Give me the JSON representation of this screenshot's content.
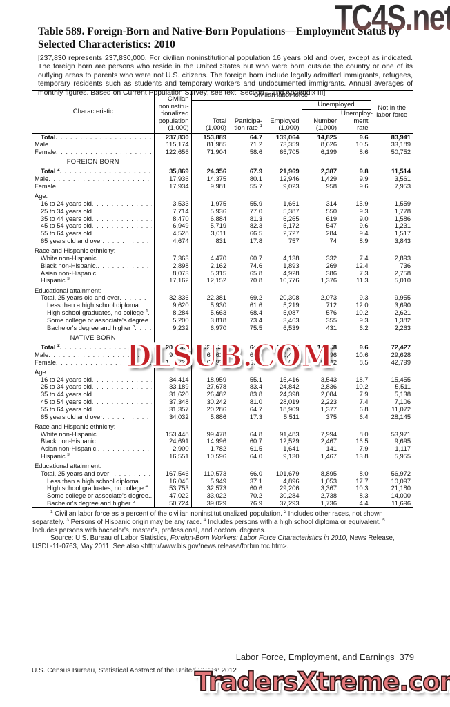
{
  "watermarks": {
    "top": "TC4S.net",
    "middle": "DLSUB.COM",
    "bottom": "TradersXtreme.com"
  },
  "header": {
    "title": "Table 589. Foreign-Born and Native-Born Populations—Employment Status by Selected Characteristics: 2010",
    "bracket_note": "[237,830 represents 237,830,000. For civilian noninstitutional population 16 years old and over, except as indicated. The foreign born are persons who reside in the United States but who were born outside the country or one of its outlying areas to parents who were not U.S. citizens. The foreign born include legally admitted immigrants, refugees, temporary residents such as students and temporary workers and undocumented immigrants. Annual averages of monthly figures. Based on Current Population Survey; see text, Section 1 and Appendix III]"
  },
  "table": {
    "characteristic_label": "Characteristic",
    "population_header": "Civilian\nnoninstitu-\ntionalized\npopulation\n(1,000)",
    "clf_group": "Civilian labor force",
    "unemployed_group": "Unemployed",
    "nilf_header": "Not in the\nlabor force",
    "columns": [
      {
        "lines": [
          "Total",
          "(1,000)"
        ],
        "sup": ""
      },
      {
        "lines": [
          "Participa-",
          "tion rate"
        ],
        "sup": "1"
      },
      {
        "lines": [
          "Employed",
          "(1,000)"
        ],
        "sup": ""
      },
      {
        "lines": [
          "Number",
          "(1,000)"
        ],
        "sup": ""
      },
      {
        "lines": [
          "Unemploy-",
          "ment rate"
        ],
        "sup": ""
      }
    ],
    "rows": [
      {
        "type": "data",
        "label": "Total",
        "sup": "",
        "indent": 1,
        "bold": true,
        "gap": false,
        "values": [
          "237,830",
          "153,889",
          "64.7",
          "139,064",
          "14,825",
          "9.6",
          "83,941"
        ]
      },
      {
        "type": "data",
        "label": "Male",
        "sup": "",
        "indent": 0,
        "bold": false,
        "gap": false,
        "values": [
          "115,174",
          "81,985",
          "71.2",
          "73,359",
          "8,626",
          "10.5",
          "33,189"
        ]
      },
      {
        "type": "data",
        "label": "Female",
        "sup": "",
        "indent": 0,
        "bold": false,
        "gap": false,
        "values": [
          "122,656",
          "71,904",
          "58.6",
          "65,705",
          "6,199",
          "8.6",
          "50,752"
        ]
      },
      {
        "type": "section",
        "label": "FOREIGN BORN",
        "sup": "",
        "indent": 0,
        "bold": false,
        "gap": true,
        "values": null
      },
      {
        "type": "data",
        "label": "Total",
        "sup": "2",
        "indent": 1,
        "bold": true,
        "gap": true,
        "values": [
          "35,869",
          "24,356",
          "67.9",
          "21,969",
          "2,387",
          "9.8",
          "11,514"
        ]
      },
      {
        "type": "data",
        "label": "Male",
        "sup": "",
        "indent": 0,
        "bold": false,
        "gap": false,
        "values": [
          "17,936",
          "14,375",
          "80.1",
          "12,946",
          "1,429",
          "9.9",
          "3,561"
        ]
      },
      {
        "type": "data",
        "label": "Female",
        "sup": "",
        "indent": 0,
        "bold": false,
        "gap": false,
        "values": [
          "17,934",
          "9,981",
          "55.7",
          "9,023",
          "958",
          "9.6",
          "7,953"
        ]
      },
      {
        "type": "group",
        "label": "Age:",
        "sup": "",
        "indent": 0,
        "bold": false,
        "gap": true,
        "values": null
      },
      {
        "type": "data",
        "label": "16 to 24 years old",
        "sup": "",
        "indent": 1,
        "bold": false,
        "gap": false,
        "values": [
          "3,533",
          "1,975",
          "55.9",
          "1,661",
          "314",
          "15.9",
          "1,559"
        ]
      },
      {
        "type": "data",
        "label": "25 to 34 years old",
        "sup": "",
        "indent": 1,
        "bold": false,
        "gap": false,
        "values": [
          "7,714",
          "5,936",
          "77.0",
          "5,387",
          "550",
          "9.3",
          "1,778"
        ]
      },
      {
        "type": "data",
        "label": "35 to 44 years old",
        "sup": "",
        "indent": 1,
        "bold": false,
        "gap": false,
        "values": [
          "8,470",
          "6,884",
          "81.3",
          "6,265",
          "619",
          "9.0",
          "1,586"
        ]
      },
      {
        "type": "data",
        "label": "45 to 54 years old",
        "sup": "",
        "indent": 1,
        "bold": false,
        "gap": false,
        "values": [
          "6,949",
          "5,719",
          "82.3",
          "5,172",
          "547",
          "9.6",
          "1,231"
        ]
      },
      {
        "type": "data",
        "label": "55 to 64 years old",
        "sup": "",
        "indent": 1,
        "bold": false,
        "gap": false,
        "values": [
          "4,528",
          "3,011",
          "66.5",
          "2,727",
          "284",
          "9.4",
          "1,517"
        ]
      },
      {
        "type": "data",
        "label": "65 years old and over",
        "sup": "",
        "indent": 1,
        "bold": false,
        "gap": false,
        "values": [
          "4,674",
          "831",
          "17.8",
          "757",
          "74",
          "8.9",
          "3,843"
        ]
      },
      {
        "type": "group",
        "label": "Race and Hispanic ethnicity:",
        "sup": "",
        "indent": 0,
        "bold": false,
        "gap": true,
        "values": null
      },
      {
        "type": "data",
        "label": "White non-Hispanic.",
        "sup": "",
        "indent": 1,
        "bold": false,
        "gap": false,
        "values": [
          "7,363",
          "4,470",
          "60.7",
          "4,138",
          "332",
          "7.4",
          "2,893"
        ]
      },
      {
        "type": "data",
        "label": "Black non-Hispanic.",
        "sup": "",
        "indent": 1,
        "bold": false,
        "gap": false,
        "values": [
          "2,898",
          "2,162",
          "74.6",
          "1,893",
          "269",
          "12.4",
          "736"
        ]
      },
      {
        "type": "data",
        "label": "Asian non-Hispanic.",
        "sup": "",
        "indent": 1,
        "bold": false,
        "gap": false,
        "values": [
          "8,073",
          "5,315",
          "65.8",
          "4,928",
          "386",
          "7.3",
          "2,758"
        ]
      },
      {
        "type": "data",
        "label": "Hispanic",
        "sup": "3",
        "indent": 1,
        "bold": false,
        "gap": false,
        "values": [
          "17,162",
          "12,152",
          "70.8",
          "10,776",
          "1,376",
          "11.3",
          "5,010"
        ]
      },
      {
        "type": "group",
        "label": "Educational attainment:",
        "sup": "",
        "indent": 0,
        "bold": false,
        "gap": true,
        "values": null
      },
      {
        "type": "data",
        "label": "Total, 25 years old and over",
        "sup": "",
        "indent": 1,
        "bold": false,
        "gap": false,
        "values": [
          "32,336",
          "22,381",
          "69.2",
          "20,308",
          "2,073",
          "9.3",
          "9,955"
        ]
      },
      {
        "type": "data",
        "label": "Less than a high school diploma",
        "sup": "",
        "indent": 2,
        "bold": false,
        "gap": false,
        "values": [
          "9,620",
          "5,930",
          "61.6",
          "5,219",
          "712",
          "12.0",
          "3,690"
        ]
      },
      {
        "type": "data",
        "label": "High school graduates, no college",
        "sup": "4",
        "indent": 2,
        "bold": false,
        "gap": false,
        "values": [
          "8,284",
          "5,663",
          "68.4",
          "5,087",
          "576",
          "10.2",
          "2,621"
        ]
      },
      {
        "type": "data",
        "label": "Some college or associate's degree.",
        "sup": "",
        "indent": 2,
        "bold": false,
        "gap": false,
        "values": [
          "5,200",
          "3,818",
          "73.4",
          "3,463",
          "355",
          "9.3",
          "1,382"
        ]
      },
      {
        "type": "data",
        "label": "Bachelor's degree and higher",
        "sup": "5",
        "indent": 2,
        "bold": false,
        "gap": false,
        "values": [
          "9,232",
          "6,970",
          "75.5",
          "6,539",
          "431",
          "6.2",
          "2,263"
        ]
      },
      {
        "type": "section",
        "label": "NATIVE BORN",
        "sup": "",
        "indent": 0,
        "bold": false,
        "gap": true,
        "values": null
      },
      {
        "type": "data",
        "label": "Total",
        "sup": "2",
        "indent": 1,
        "bold": true,
        "gap": true,
        "values": [
          "201,960",
          "129,533",
          "64.1",
          "117,095",
          "12,438",
          "9.6",
          "72,427"
        ]
      },
      {
        "type": "data",
        "label": "Male",
        "sup": "",
        "indent": 0,
        "bold": false,
        "gap": false,
        "values": [
          "97,238",
          "67,610",
          "69.5",
          "60,414",
          "7,196",
          "10.6",
          "29,628"
        ]
      },
      {
        "type": "data",
        "label": "Female",
        "sup": "",
        "indent": 0,
        "bold": false,
        "gap": false,
        "values": [
          "104,722",
          "61,923",
          "59.1",
          "56,681",
          "5,242",
          "8.5",
          "42,799"
        ]
      },
      {
        "type": "group",
        "label": "Age:",
        "sup": "",
        "indent": 0,
        "bold": false,
        "gap": true,
        "values": null
      },
      {
        "type": "data",
        "label": "16 to 24 years old",
        "sup": "",
        "indent": 1,
        "bold": false,
        "gap": false,
        "values": [
          "34,414",
          "18,959",
          "55.1",
          "15,416",
          "3,543",
          "18.7",
          "15,455"
        ]
      },
      {
        "type": "data",
        "label": "25 to 34 years old",
        "sup": "",
        "indent": 1,
        "bold": false,
        "gap": false,
        "values": [
          "33,189",
          "27,678",
          "83.4",
          "24,842",
          "2,836",
          "10.2",
          "5,511"
        ]
      },
      {
        "type": "data",
        "label": "35 to 44 years old",
        "sup": "",
        "indent": 1,
        "bold": false,
        "gap": false,
        "values": [
          "31,620",
          "26,482",
          "83.8",
          "24,398",
          "2,084",
          "7.9",
          "5,138"
        ]
      },
      {
        "type": "data",
        "label": "45 to 54 years old",
        "sup": "",
        "indent": 1,
        "bold": false,
        "gap": false,
        "values": [
          "37,348",
          "30,242",
          "81.0",
          "28,019",
          "2,223",
          "7.4",
          "7,106"
        ]
      },
      {
        "type": "data",
        "label": "55 to 64 years old",
        "sup": "",
        "indent": 1,
        "bold": false,
        "gap": false,
        "values": [
          "31,357",
          "20,286",
          "64.7",
          "18,909",
          "1,377",
          "6.8",
          "11,072"
        ]
      },
      {
        "type": "data",
        "label": "65 years old and over",
        "sup": "",
        "indent": 1,
        "bold": false,
        "gap": false,
        "values": [
          "34,032",
          "5,886",
          "17.3",
          "5,511",
          "375",
          "6.4",
          "28,145"
        ]
      },
      {
        "type": "group",
        "label": "Race and Hispanic ethnicity:",
        "sup": "",
        "indent": 0,
        "bold": false,
        "gap": true,
        "values": null
      },
      {
        "type": "data",
        "label": "White non-Hispanic.",
        "sup": "",
        "indent": 1,
        "bold": false,
        "gap": false,
        "values": [
          "153,448",
          "99,478",
          "64.8",
          "91,483",
          "7,994",
          "8.0",
          "53,971"
        ]
      },
      {
        "type": "data",
        "label": "Black non-Hispanic.",
        "sup": "",
        "indent": 1,
        "bold": false,
        "gap": false,
        "values": [
          "24,691",
          "14,996",
          "60.7",
          "12,529",
          "2,467",
          "16.5",
          "9,695"
        ]
      },
      {
        "type": "data",
        "label": "Asian non-Hispanic.",
        "sup": "",
        "indent": 1,
        "bold": false,
        "gap": false,
        "values": [
          "2,900",
          "1,782",
          "61.5",
          "1,641",
          "141",
          "7.9",
          "1,117"
        ]
      },
      {
        "type": "data",
        "label": "Hispanic",
        "sup": "3",
        "indent": 1,
        "bold": false,
        "gap": false,
        "values": [
          "16,551",
          "10,596",
          "64.0",
          "9,130",
          "1,467",
          "13.8",
          "5,955"
        ]
      },
      {
        "type": "group",
        "label": "Educational attainment:",
        "sup": "",
        "indent": 0,
        "bold": false,
        "gap": true,
        "values": null
      },
      {
        "type": "data",
        "label": "Total, 25 years and over",
        "sup": "",
        "indent": 1,
        "bold": false,
        "gap": false,
        "values": [
          "167,546",
          "110,573",
          "66.0",
          "101,679",
          "8,895",
          "8.0",
          "56,972"
        ]
      },
      {
        "type": "data",
        "label": "Less than a high school diploma",
        "sup": "",
        "indent": 2,
        "bold": false,
        "gap": false,
        "values": [
          "16,046",
          "5,949",
          "37.1",
          "4,896",
          "1,053",
          "17.7",
          "10,097"
        ]
      },
      {
        "type": "data",
        "label": "High school graduates, no college",
        "sup": "4",
        "indent": 2,
        "bold": false,
        "gap": false,
        "values": [
          "53,753",
          "32,573",
          "60.6",
          "29,206",
          "3,367",
          "10.3",
          "21,180"
        ]
      },
      {
        "type": "data",
        "label": "Some college or associate's degree.",
        "sup": "",
        "indent": 2,
        "bold": false,
        "gap": false,
        "values": [
          "47,022",
          "33,022",
          "70.2",
          "30,284",
          "2,738",
          "8.3",
          "14,000"
        ]
      },
      {
        "type": "data",
        "label": "Bachelor's degree and higher",
        "sup": "5",
        "indent": 2,
        "bold": false,
        "gap": false,
        "values": [
          "50,724",
          "39,029",
          "76.9",
          "37,293",
          "1,736",
          "4.4",
          "11,696"
        ]
      }
    ]
  },
  "footnotes": {
    "notes": [
      {
        "sup": "1",
        "text": "Civilian labor force as a percent of the civilian noninstitutionalized population."
      },
      {
        "sup": "2",
        "text": "Includes other races, not shown separately."
      },
      {
        "sup": "3",
        "text": "Persons of Hispanic origin may be any race."
      },
      {
        "sup": "4",
        "text": "Includes persons with a high school diploma or equivalent."
      },
      {
        "sup": "5",
        "text": "Includes persons with bachelor's, master's, professional, and doctoral degrees."
      }
    ],
    "source_prefix": "Source: U.S. Bureau of Labor Statistics, ",
    "source_italic": "Foreign-Born Workers: Labor Force Characteristics in 2010",
    "source_suffix": ", News Release, USDL-11-0763, May 2011. See also <http://www.bls.gov/news.release/forbrn.toc.htm>."
  },
  "footer": {
    "running_head": "Labor Force, Employment, and Earnings",
    "page_number": "379",
    "source_line": "U.S. Census Bureau, Statistical Abstract of the United States: 2012"
  },
  "colors": {
    "watermark_mid_red": "#c42127",
    "watermark_bottom_fill": "#e2777a",
    "watermark_top_gradient_start": "#1c1c1c",
    "watermark_top_gradient_end": "#8a4a48"
  }
}
